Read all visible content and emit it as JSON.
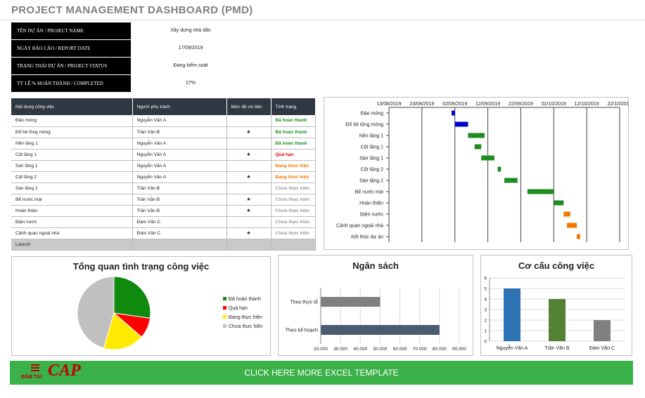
{
  "page": {
    "title": "PROJECT MANAGEMENT DASHBOARD (PMD)"
  },
  "info": [
    {
      "label": "TÊN DỰ ÁN / PROJECT NAME",
      "value": "Xây dựng nhà dân"
    },
    {
      "label": "NGÀY BÁO CÁO / REPORT DATE",
      "value": "17/09/2019"
    },
    {
      "label": "TRẠNG THÁI DỰ ÁN / PROJECT STATUS",
      "value": "Đang kiểm soát"
    },
    {
      "label": "TỶ LỆ % HOÀN THÀNH / COMPLETED",
      "value": "27%"
    }
  ],
  "tasks": {
    "headers": [
      "Nội dung công việc",
      "Người phụ trách",
      "Mức độ ưu tiên",
      "Tình trạng"
    ],
    "rows": [
      {
        "task": "Đào móng",
        "owner": "Nguyễn Văn A",
        "priority": "",
        "status": "Đã hoàn thành",
        "color": "#1e8c1e"
      },
      {
        "task": "Đổ bê tông móng",
        "owner": "Trần Văn B",
        "priority": "★",
        "status": "Đã hoàn thành",
        "color": "#1e8c1e"
      },
      {
        "task": "Nền tầng 1",
        "owner": "Nguyễn Văn A",
        "priority": "",
        "status": "Đã hoàn thành",
        "color": "#1e8c1e"
      },
      {
        "task": "Cột tầng 1",
        "owner": "Nguyễn Văn A",
        "priority": "★",
        "status": "Quá hạn",
        "color": "#e00000"
      },
      {
        "task": "Sàn tầng 1",
        "owner": "Nguyễn Văn A",
        "priority": "",
        "status": "Đang thực hiện",
        "color": "#f07800"
      },
      {
        "task": "Cột tầng 2",
        "owner": "Nguyễn Văn A",
        "priority": "★",
        "status": "Đang thực hiện",
        "color": "#f07800"
      },
      {
        "task": "Sàn tầng 2",
        "owner": "Trần Văn B",
        "priority": "",
        "status": "Chưa thực hiện",
        "color": "#9a9a9a"
      },
      {
        "task": "Bể nước mái",
        "owner": "Trần Văn B",
        "priority": "★",
        "status": "Chưa thực hiện",
        "color": "#9a9a9a"
      },
      {
        "task": "Hoàn thiện",
        "owner": "Trần Văn B",
        "priority": "★",
        "status": "Chưa thực hiện",
        "color": "#9a9a9a"
      },
      {
        "task": "Điện nước",
        "owner": "Đàm Văn C",
        "priority": "",
        "status": "Chưa thực hiện",
        "color": "#9a9a9a"
      },
      {
        "task": "Cảnh quan ngoài nhà",
        "owner": "Đàm Văn C",
        "priority": "★",
        "status": "Chưa thực hiện",
        "color": "#9a9a9a"
      },
      {
        "task": "Launch",
        "owner": "",
        "priority": "",
        "status": "",
        "color": "#222222"
      }
    ]
  },
  "chart_data": [
    {
      "type": "bar",
      "subtype": "gantt",
      "title": "",
      "x_tick_labels": [
        "13/08/2019",
        "23/08/2019",
        "02/09/2019",
        "12/09/2019",
        "22/09/2019",
        "02/10/2019",
        "12/10/2019",
        "22/10/2019"
      ],
      "x_range": [
        "13/08/2019",
        "22/10/2019"
      ],
      "tasks": [
        {
          "name": "Đào móng",
          "start": "01/09/2019",
          "end": "02/09/2019",
          "color": "#0000cc"
        },
        {
          "name": "Đổ bê tông móng",
          "start": "02/09/2019",
          "end": "06/09/2019",
          "color": "#0000cc"
        },
        {
          "name": "Nền tầng 1",
          "start": "06/09/2019",
          "end": "11/09/2019",
          "color": "#1e8c1e"
        },
        {
          "name": "Cột tầng 1",
          "start": "08/09/2019",
          "end": "10/09/2019",
          "color": "#1e8c1e"
        },
        {
          "name": "Sàn tầng 1",
          "start": "10/09/2019",
          "end": "14/09/2019",
          "color": "#1e8c1e"
        },
        {
          "name": "Cột tầng 2",
          "start": "15/09/2019",
          "end": "16/09/2019",
          "color": "#1e8c1e"
        },
        {
          "name": "Sàn tầng 2",
          "start": "17/09/2019",
          "end": "21/09/2019",
          "color": "#1e8c1e"
        },
        {
          "name": "Bể nước mái",
          "start": "24/09/2019",
          "end": "02/10/2019",
          "color": "#1e8c1e"
        },
        {
          "name": "Hoàn thiện",
          "start": "02/10/2019",
          "end": "05/10/2019",
          "color": "#1e8c1e"
        },
        {
          "name": "Điện nước",
          "start": "05/10/2019",
          "end": "07/10/2019",
          "color": "#f07800"
        },
        {
          "name": "Cảnh quan ngoài nhà",
          "start": "06/10/2019",
          "end": "09/10/2019",
          "color": "#f07800"
        },
        {
          "name": "Kết thúc dự án",
          "start": "09/10/2019",
          "end": "10/10/2019",
          "color": "#f07800"
        }
      ],
      "grid": true
    },
    {
      "type": "pie",
      "title": "Tổng quan tình trạng công việc",
      "legend_position": "right",
      "slices": [
        {
          "name": "Đã hoàn thành",
          "value": 3,
          "color": "#0f8a0f"
        },
        {
          "name": "Quá hạn",
          "value": 1,
          "color": "#ff0000"
        },
        {
          "name": "Đang thực hiện",
          "value": 2,
          "color": "#ffeb00"
        },
        {
          "name": "Chưa thực hiện",
          "value": 5,
          "color": "#c0c0c0"
        }
      ]
    },
    {
      "type": "bar",
      "orientation": "horizontal",
      "title": "Ngân sách",
      "categories": [
        "Theo thực tế",
        "Theo kế hoạch"
      ],
      "values": [
        50000,
        80000
      ],
      "colors": [
        "#808080",
        "#4a5a73"
      ],
      "x_tick_labels": [
        "20.000",
        "30.000",
        "40.000",
        "50.000",
        "60.000",
        "70.000",
        "80.000",
        "90.000"
      ],
      "xlim": [
        20000,
        90000
      ],
      "grid": true
    },
    {
      "type": "bar",
      "title": "Cơ cấu công việc",
      "categories": [
        "Nguyễn Văn A",
        "Trần Văn B",
        "Đàm Văn C"
      ],
      "values": [
        5,
        4,
        2
      ],
      "colors": [
        "#2e74b5",
        "#548235",
        "#808080"
      ],
      "ylim": [
        0,
        6
      ],
      "y_tick_labels": [
        "0",
        "1",
        "2",
        "3",
        "4",
        "5",
        "6"
      ],
      "grid": true
    }
  ],
  "banner": {
    "text": "CLICK HERE MORE EXCEL TEMPLATE",
    "logo_text": "CAP",
    "logo_sub": "ĐẦM TẢI"
  }
}
